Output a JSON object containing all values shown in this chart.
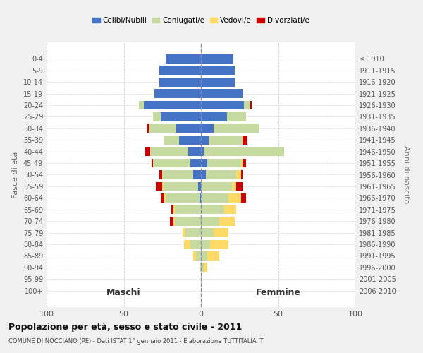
{
  "age_groups": [
    "0-4",
    "5-9",
    "10-14",
    "15-19",
    "20-24",
    "25-29",
    "30-34",
    "35-39",
    "40-44",
    "45-49",
    "50-54",
    "55-59",
    "60-64",
    "65-69",
    "70-74",
    "75-79",
    "80-84",
    "85-89",
    "90-94",
    "95-99",
    "100+"
  ],
  "birth_years": [
    "2006-2010",
    "2001-2005",
    "1996-2000",
    "1991-1995",
    "1986-1990",
    "1981-1985",
    "1976-1980",
    "1971-1975",
    "1966-1970",
    "1961-1965",
    "1956-1960",
    "1951-1955",
    "1946-1950",
    "1941-1945",
    "1936-1940",
    "1931-1935",
    "1926-1930",
    "1921-1925",
    "1916-1920",
    "1911-1915",
    "≤ 1910"
  ],
  "males": {
    "celibi": [
      23,
      27,
      27,
      30,
      37,
      26,
      16,
      14,
      8,
      7,
      5,
      2,
      1,
      0,
      0,
      0,
      0,
      0,
      0,
      0,
      0
    ],
    "coniugati": [
      0,
      0,
      0,
      0,
      3,
      5,
      18,
      10,
      25,
      24,
      20,
      22,
      22,
      17,
      17,
      10,
      7,
      3,
      1,
      0,
      0
    ],
    "vedovi": [
      0,
      0,
      0,
      0,
      0,
      0,
      0,
      0,
      0,
      0,
      0,
      1,
      1,
      1,
      1,
      2,
      4,
      2,
      0,
      0,
      0
    ],
    "divorziati": [
      0,
      0,
      0,
      0,
      0,
      0,
      1,
      0,
      3,
      1,
      2,
      4,
      2,
      1,
      2,
      0,
      0,
      0,
      0,
      0,
      0
    ]
  },
  "females": {
    "nubili": [
      21,
      22,
      22,
      27,
      28,
      17,
      8,
      5,
      2,
      4,
      3,
      0,
      0,
      0,
      0,
      0,
      0,
      0,
      0,
      0,
      0
    ],
    "coniugate": [
      0,
      0,
      0,
      0,
      4,
      12,
      30,
      22,
      52,
      22,
      20,
      20,
      18,
      15,
      12,
      8,
      6,
      4,
      2,
      1,
      0
    ],
    "vedove": [
      0,
      0,
      0,
      0,
      0,
      0,
      0,
      0,
      0,
      1,
      3,
      3,
      8,
      8,
      10,
      10,
      12,
      8,
      2,
      0,
      0
    ],
    "divorziate": [
      0,
      0,
      0,
      0,
      1,
      0,
      0,
      3,
      0,
      2,
      1,
      4,
      3,
      0,
      0,
      0,
      0,
      0,
      0,
      0,
      0
    ]
  },
  "colors": {
    "celibi_nubili": "#4472c4",
    "coniugati": "#c5d9a0",
    "vedovi": "#ffd966",
    "divorziati": "#cc0000"
  },
  "xlim": [
    -100,
    100
  ],
  "title": "Popolazione per età, sesso e stato civile - 2011",
  "subtitle": "COMUNE DI NOCCIANO (PE) - Dati ISTAT 1° gennaio 2011 - Elaborazione TUTTITALIA.IT",
  "ylabel": "Fasce di età",
  "y2label": "Anni di nascita",
  "xlabel_left": "Maschi",
  "xlabel_right": "Femmine",
  "legend_labels": [
    "Celibi/Nubili",
    "Coniugati/e",
    "Vedovi/e",
    "Divorziati/e"
  ],
  "bg_color": "#f0f0f0",
  "plot_bg_color": "#ffffff"
}
